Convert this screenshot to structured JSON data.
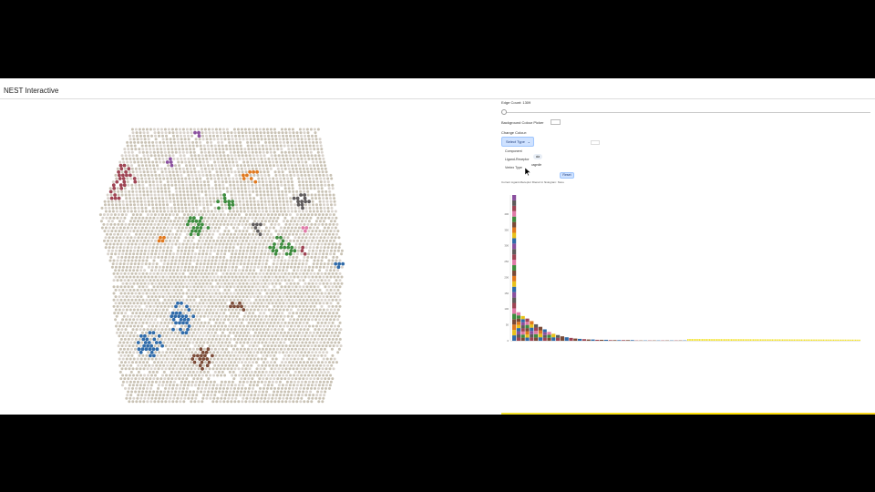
{
  "app": {
    "title": "NEST Interactive"
  },
  "controls": {
    "edge_count_label": "Edge Count: 1309",
    "edge_slider": {
      "min": 0,
      "max": 1,
      "value": 0.0
    },
    "bg_colour_label": "Background Colour Picker",
    "change_colour_label": "Change Colour:",
    "select_type_label": "Select Type",
    "menu_items": [
      "Component",
      "Ligand-Receptor",
      "Vertex Type"
    ],
    "input_name_value": "ala",
    "input_value_text": "cagedle",
    "reset_label": "Reset",
    "histogram_note": "Current Ligand-Receptor filtered in histogram: None"
  },
  "colors": {
    "tissue_base": "#c9c2b4",
    "tissue_light": "#d9d3cc",
    "cluster_red": "#9e4453",
    "cluster_blue": "#2f6aa8",
    "cluster_green": "#3d8b3d",
    "cluster_orange": "#e0791f",
    "cluster_purple": "#8a4f9e",
    "cluster_brown": "#7a4a36",
    "cluster_yellow": "#e8c11a",
    "cluster_pink": "#e07aa8",
    "cluster_gray": "#5e5a5a",
    "accent_blue": "#cfe2ff",
    "histogram_tail": "#f3e22a"
  },
  "chart_data": {
    "type": "bar",
    "stacked": true,
    "y_ticks": [
      "0",
      "50",
      "100",
      "150",
      "200",
      "250",
      "300",
      "350",
      "400"
    ],
    "values": [
      460,
      90,
      78,
      70,
      62,
      52,
      44,
      36,
      28,
      22,
      18,
      14,
      11,
      9,
      7,
      6,
      5,
      4,
      4,
      3,
      3,
      3,
      2,
      2,
      2,
      2,
      2,
      2,
      1,
      1,
      1,
      1,
      1,
      1,
      1,
      1,
      1,
      1,
      1,
      1
    ],
    "ylim": [
      0,
      460
    ],
    "segment_colors": [
      "#2f6aa8",
      "#e0791f",
      "#3d8b3d",
      "#9e4453",
      "#8a4f9e",
      "#e8c11a",
      "#7a4a36",
      "#e07aa8",
      "#5e5a5a"
    ]
  }
}
